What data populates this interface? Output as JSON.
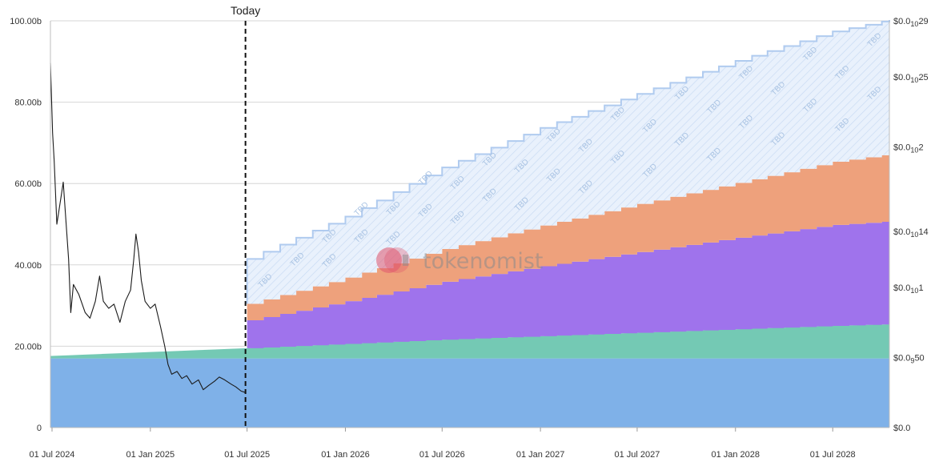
{
  "chart_data": {
    "type": "area",
    "x_ticks": [
      "01 Jul 2024",
      "01 Jan 2025",
      "01 Jul 2025",
      "01 Jan 2026",
      "01 Jul 2026",
      "01 Jan 2027",
      "01 Jul 2027",
      "01 Jan 2028",
      "01 Jul 2028"
    ],
    "x_range": [
      "2024-06-28",
      "2028-10-15"
    ],
    "y_left": {
      "ticks": [
        "0",
        "20.00b",
        "40.00b",
        "60.00b",
        "80.00b",
        "100.00b"
      ],
      "min": 0,
      "max": 100
    },
    "y_right": {
      "ticks": [
        {
          "value": 0,
          "label": "$0.0"
        },
        {
          "value": 5e-11,
          "prefix": "$0.0",
          "sub": "9",
          "suffix": "50"
        },
        {
          "value": 1e-10,
          "prefix": "$0.0",
          "sub": "10",
          "suffix": "1"
        },
        {
          "value": 1.4e-10,
          "prefix": "$0.0",
          "sub": "10",
          "suffix": "14"
        },
        {
          "value": 2e-10,
          "prefix": "$0.0",
          "sub": "10",
          "suffix": "2"
        },
        {
          "value": 2.5e-10,
          "prefix": "$0.0",
          "sub": "10",
          "suffix": "25"
        },
        {
          "value": 2.9e-10,
          "prefix": "$0.0",
          "sub": "10",
          "suffix": "29"
        }
      ]
    },
    "today": {
      "label": "Today",
      "date": "2025-06-28"
    },
    "series": [
      {
        "color": "#7fb1e8",
        "points": [
          [
            "2024-06-28",
            17
          ],
          [
            "2028-10-15",
            17
          ]
        ]
      },
      {
        "color": "#74c9b4",
        "points": [
          [
            "2024-06-28",
            0.6
          ],
          [
            "2025-06-28",
            2.5
          ],
          [
            "2026-06-28",
            4.6
          ],
          [
            "2027-06-28",
            6.3
          ],
          [
            "2028-06-28",
            8.0
          ],
          [
            "2028-10-15",
            8.4
          ]
        ]
      },
      {
        "color": "#9f73ec",
        "points": [
          [
            "2025-06-28",
            6.8
          ],
          [
            "2026-01-01",
            10.5
          ],
          [
            "2026-06-28",
            14.2
          ],
          [
            "2027-01-01",
            17.2
          ],
          [
            "2027-06-28",
            19.8
          ],
          [
            "2028-01-01",
            22.5
          ],
          [
            "2028-06-28",
            24.8
          ],
          [
            "2028-10-15",
            25.3
          ]
        ]
      },
      {
        "color": "#eea17c",
        "points": [
          [
            "2025-06-28",
            4.0
          ],
          [
            "2026-01-01",
            5.8
          ],
          [
            "2026-06-28",
            8.0
          ],
          [
            "2027-01-01",
            10.0
          ],
          [
            "2027-06-28",
            11.8
          ],
          [
            "2028-01-01",
            13.5
          ],
          [
            "2028-06-28",
            15.5
          ],
          [
            "2028-10-15",
            16.5
          ]
        ]
      },
      {
        "name": "TBD",
        "color": "#b0cbef",
        "points": [
          [
            "2025-06-28",
            11.0
          ],
          [
            "2026-01-01",
            15.0
          ],
          [
            "2026-06-28",
            20.0
          ],
          [
            "2027-01-01",
            24.0
          ],
          [
            "2027-06-28",
            27.0
          ],
          [
            "2028-01-01",
            30.0
          ],
          [
            "2028-06-28",
            32.0
          ],
          [
            "2028-10-15",
            33.0
          ]
        ]
      }
    ],
    "price_series": {
      "color": "#1a1a1a",
      "points": [
        [
          "2024-06-28",
          2.6e-10
        ],
        [
          "2024-07-02",
          2.1e-10
        ],
        [
          "2024-07-05",
          1.9e-10
        ],
        [
          "2024-07-10",
          1.45e-10
        ],
        [
          "2024-07-18",
          1.65e-10
        ],
        [
          "2024-07-22",
          1.75e-10
        ],
        [
          "2024-08-01",
          1.2e-10
        ],
        [
          "2024-08-05",
          8.2e-11
        ],
        [
          "2024-08-10",
          1.02e-10
        ],
        [
          "2024-08-20",
          9.5e-11
        ],
        [
          "2024-09-01",
          8.2e-11
        ],
        [
          "2024-09-10",
          7.8e-11
        ],
        [
          "2024-09-20",
          9e-11
        ],
        [
          "2024-09-28",
          1.08e-10
        ],
        [
          "2024-10-05",
          9e-11
        ],
        [
          "2024-10-15",
          8.5e-11
        ],
        [
          "2024-10-25",
          8.8e-11
        ],
        [
          "2024-11-05",
          7.5e-11
        ],
        [
          "2024-11-15",
          9e-11
        ],
        [
          "2024-11-25",
          9.8e-11
        ],
        [
          "2024-12-01",
          1.2e-10
        ],
        [
          "2024-12-05",
          1.38e-10
        ],
        [
          "2024-12-10",
          1.25e-10
        ],
        [
          "2024-12-15",
          1.05e-10
        ],
        [
          "2024-12-22",
          9e-11
        ],
        [
          "2025-01-01",
          8.5e-11
        ],
        [
          "2025-01-10",
          8.8e-11
        ],
        [
          "2025-01-20",
          7.2e-11
        ],
        [
          "2025-01-28",
          5.8e-11
        ],
        [
          "2025-02-03",
          4.5e-11
        ],
        [
          "2025-02-10",
          3.8e-11
        ],
        [
          "2025-02-20",
          4e-11
        ],
        [
          "2025-03-01",
          3.5e-11
        ],
        [
          "2025-03-10",
          3.7e-11
        ],
        [
          "2025-03-20",
          3.1e-11
        ],
        [
          "2025-04-01",
          3.4e-11
        ],
        [
          "2025-04-10",
          2.7e-11
        ],
        [
          "2025-04-20",
          3e-11
        ],
        [
          "2025-05-01",
          3.3e-11
        ],
        [
          "2025-05-10",
          3.6e-11
        ],
        [
          "2025-05-20",
          3.4e-11
        ],
        [
          "2025-06-01",
          3.1e-11
        ],
        [
          "2025-06-10",
          2.9e-11
        ],
        [
          "2025-06-20",
          2.6e-11
        ],
        [
          "2025-06-28",
          2.5e-11
        ]
      ]
    },
    "watermark": "tokenomist",
    "hatch_label": "TBD"
  }
}
